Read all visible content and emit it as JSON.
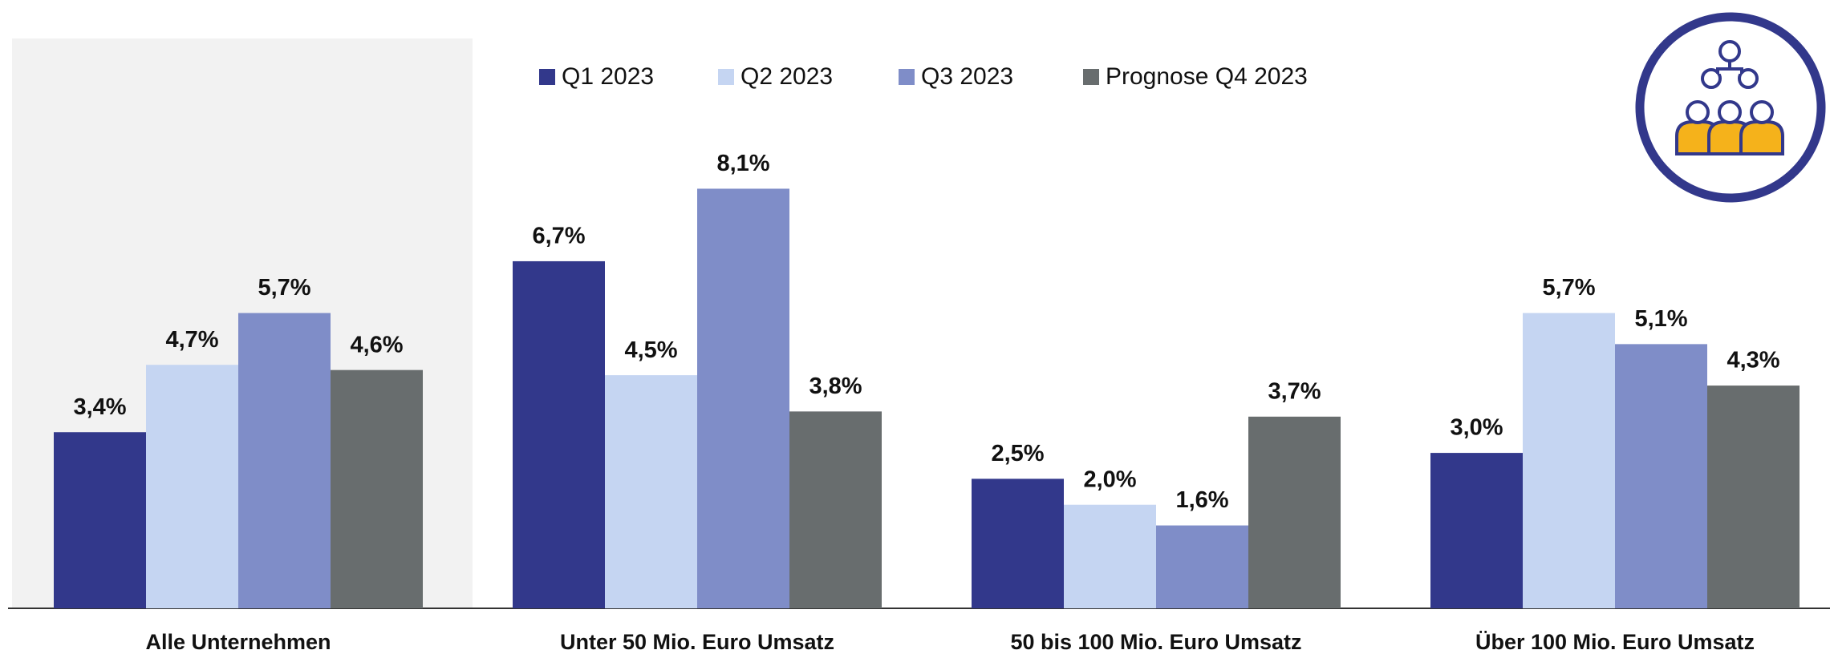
{
  "chart_data": {
    "type": "bar",
    "categories": [
      "Alle Unternehmen",
      "Unter 50 Mio. Euro Umsatz",
      "50 bis 100 Mio. Euro Umsatz",
      "Über 100 Mio. Euro Umsatz"
    ],
    "series": [
      {
        "name": "Q1 2023",
        "color": "#32388b",
        "values": [
          3.4,
          6.7,
          2.5,
          3.0
        ],
        "value_labels": [
          "3,4%",
          "6,7%",
          "2,5%",
          "3,0%"
        ]
      },
      {
        "name": "Q2 2023",
        "color": "#c5d5f2",
        "values": [
          4.7,
          4.5,
          2.0,
          5.7
        ],
        "value_labels": [
          "4,7%",
          "4,5%",
          "2,0%",
          "5,7%"
        ]
      },
      {
        "name": "Q3 2023",
        "color": "#7f8dc8",
        "values": [
          5.7,
          8.1,
          1.6,
          5.1
        ],
        "value_labels": [
          "5,7%",
          "8,1%",
          "1,6%",
          "5,1%"
        ]
      },
      {
        "name": "Prognose Q4 2023",
        "color": "#686d6e",
        "values": [
          4.6,
          3.8,
          3.7,
          4.3
        ],
        "value_labels": [
          "4,6%",
          "3,8%",
          "3,7%",
          "4,3%"
        ]
      }
    ],
    "ylim": [
      0,
      11
    ],
    "legend": "top"
  }
}
